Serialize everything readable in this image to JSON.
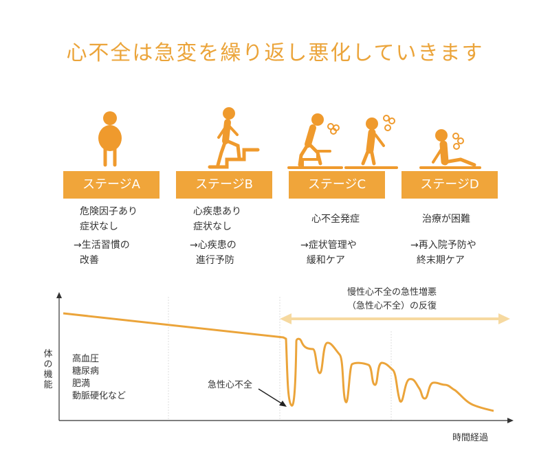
{
  "title": "心不全は急変を繰り返し悪化していきます",
  "stages": [
    {
      "label": "ステージA",
      "desc": "危険因子あり\n症状なし",
      "action": "→生活習慣の\n  改善"
    },
    {
      "label": "ステージB",
      "desc": "心疾患あり\n症状なし",
      "action": "→心疾患の\n  進行予防"
    },
    {
      "label": "ステージC",
      "desc": "心不全発症",
      "action": "→症状管理や\n  緩和ケア"
    },
    {
      "label": "ステージD",
      "desc": "治療が困難",
      "action": "→再入院予防や\n  終末期ケア"
    }
  ],
  "chart": {
    "y_axis_label": "体の機能",
    "x_axis_label": "時間経過",
    "causes": "高血圧\n糖尿病\n肥満\n動脈硬化など",
    "acute_label": "急性心不全",
    "chronic_label_1": "慢性心不全の急性増悪",
    "chronic_label_2": "（急性心不全）の反復"
  },
  "colors": {
    "accent": "#eba43a",
    "label_bg": "#f0a53a",
    "figure": "#ef9a2d",
    "arrow_light": "#f6d9a0"
  }
}
